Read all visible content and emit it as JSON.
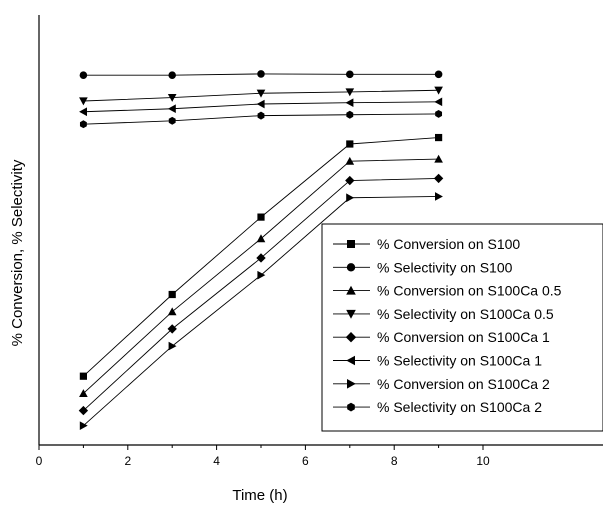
{
  "chart_data": {
    "type": "line",
    "title": "",
    "xlabel": "Time (h)",
    "ylabel": "% Conversion, % Selectivity",
    "xlim": [
      0,
      10
    ],
    "ylim": [
      0,
      100
    ],
    "x_ticks": [
      0,
      2,
      4,
      6,
      8,
      10
    ],
    "y_ticks_labeled": false,
    "grid": false,
    "legend_position": "bottom-right",
    "series": [
      {
        "name": "% Conversion on S100",
        "marker": "square",
        "x": [
          1,
          3,
          5,
          7,
          9
        ],
        "y": [
          16,
          35,
          53,
          70,
          71.5
        ]
      },
      {
        "name": "% Selectivity on S100",
        "marker": "circle",
        "x": [
          1,
          3,
          5,
          7,
          9
        ],
        "y": [
          86,
          86,
          86.3,
          86.2,
          86.2
        ]
      },
      {
        "name": "% Conversion on S100Ca 0.5",
        "marker": "triangle-up",
        "x": [
          1,
          3,
          5,
          7,
          9
        ],
        "y": [
          12,
          31,
          48,
          66,
          66.5
        ]
      },
      {
        "name": "% Selectivity on S100Ca 0.5",
        "marker": "triangle-down",
        "x": [
          1,
          3,
          5,
          7,
          9
        ],
        "y": [
          80,
          80.8,
          81.8,
          82.1,
          82.5
        ]
      },
      {
        "name": "% Conversion on S100Ca 1",
        "marker": "diamond",
        "x": [
          1,
          3,
          5,
          7,
          9
        ],
        "y": [
          8,
          27,
          43.5,
          61.5,
          62
        ]
      },
      {
        "name": "% Selectivity on S100Ca 1",
        "marker": "triangle-left",
        "x": [
          1,
          3,
          5,
          7,
          9
        ],
        "y": [
          77.5,
          78.2,
          79.3,
          79.6,
          79.8
        ]
      },
      {
        "name": "% Conversion on S100Ca 2",
        "marker": "triangle-right",
        "x": [
          1,
          3,
          5,
          7,
          9
        ],
        "y": [
          4.5,
          23,
          39.5,
          57.5,
          57.8
        ]
      },
      {
        "name": "% Selectivity on S100Ca 2",
        "marker": "hexagon",
        "x": [
          1,
          3,
          5,
          7,
          9
        ],
        "y": [
          74.6,
          75.4,
          76.6,
          76.8,
          77
        ]
      }
    ]
  }
}
